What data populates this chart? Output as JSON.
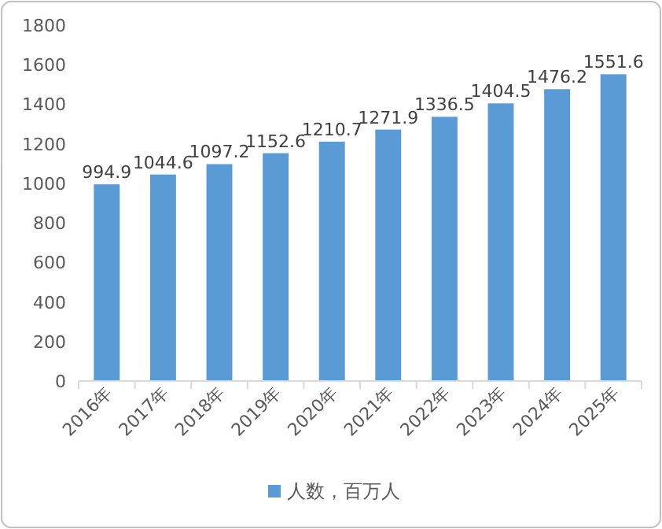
{
  "chart_data": {
    "type": "bar",
    "categories": [
      "2016年",
      "2017年",
      "2018年",
      "2019年",
      "2020年",
      "2021年",
      "2022年",
      "2023年",
      "2024年",
      "2025年"
    ],
    "series": [
      {
        "name": "人数，百万人",
        "color": "#5b9bd5",
        "values": [
          994.9,
          1044.6,
          1097.2,
          1152.6,
          1210.7,
          1271.9,
          1336.5,
          1404.5,
          1476.2,
          1551.6
        ]
      }
    ],
    "ylim": [
      0,
      1800
    ],
    "yticks": [
      0,
      200,
      400,
      600,
      800,
      1000,
      1200,
      1400,
      1600,
      1800
    ],
    "data_labels": true,
    "legend": "bottom",
    "grid": false
  }
}
